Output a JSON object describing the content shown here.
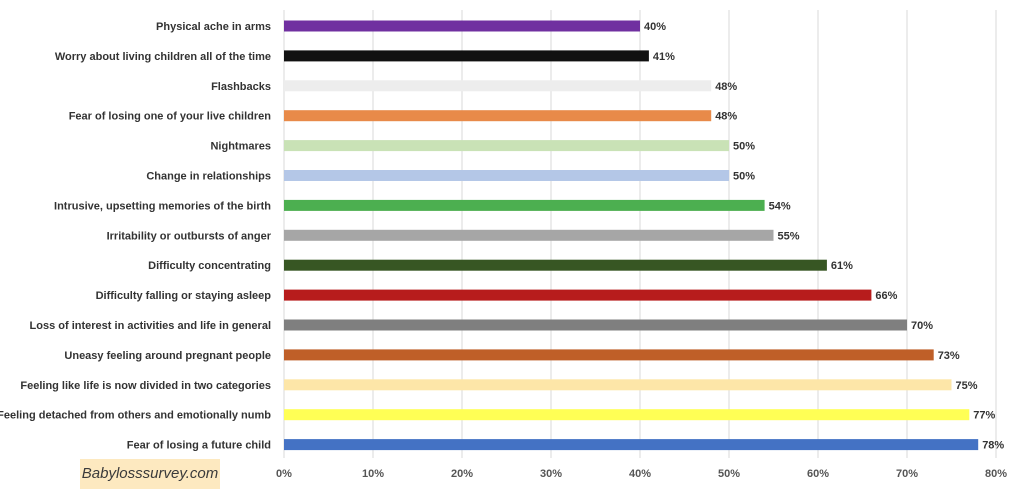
{
  "watermark": "Babylosssurvey.com",
  "chart_data": {
    "type": "bar",
    "orientation": "horizontal",
    "categories": [
      "Physical ache in arms",
      "Worry about living children all of the time",
      "Flashbacks",
      "Fear of losing one of your live children",
      "Nightmares",
      "Change in relationships",
      "Intrusive, upsetting memories of the birth",
      "Irritability or outbursts of anger",
      "Difficulty concentrating",
      "Difficulty falling or staying asleep",
      "Loss of interest in activities and life in general",
      "Uneasy feeling around pregnant people",
      "Feeling like life is now divided in two categories",
      "Feeling detached from others and emotionally numb",
      "Fear of losing a future child"
    ],
    "values": [
      40,
      41,
      48,
      48,
      50,
      50,
      54,
      55,
      61,
      66,
      70,
      73,
      75,
      77,
      78
    ],
    "value_labels": [
      "40%",
      "41%",
      "48%",
      "48%",
      "50%",
      "50%",
      "54%",
      "55%",
      "61%",
      "66%",
      "70%",
      "73%",
      "75%",
      "77%",
      "78%"
    ],
    "colors": [
      "#7030a0",
      "#111111",
      "#ededed",
      "#e88a49",
      "#c9e2b6",
      "#b4c7e7",
      "#4caf50",
      "#a6a6a6",
      "#375623",
      "#b71c1c",
      "#7f7f7f",
      "#bf5f28",
      "#fde6a8",
      "#ffff55",
      "#4472c4"
    ],
    "xlim": [
      0,
      80
    ],
    "xticks": [
      0,
      10,
      20,
      30,
      40,
      50,
      60,
      70,
      80
    ],
    "xtick_labels": [
      "0%",
      "10%",
      "20%",
      "30%",
      "40%",
      "50%",
      "60%",
      "70%",
      "80%"
    ],
    "grid": true,
    "legend": "none"
  }
}
